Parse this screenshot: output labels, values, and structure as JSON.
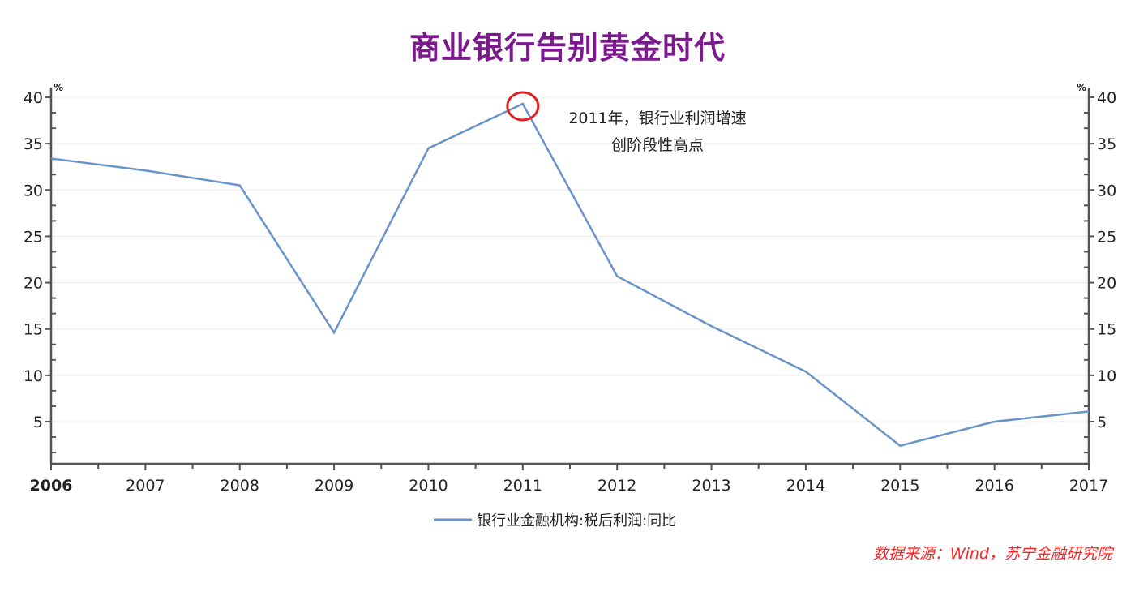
{
  "chart_data": {
    "type": "line",
    "title": "商业银行告别黄金时代",
    "xlabel": "",
    "ylabel": "%",
    "ylabel_right": "%",
    "x": [
      2006,
      2007,
      2008,
      2009,
      2010,
      2011,
      2012,
      2013,
      2014,
      2015,
      2016,
      2017
    ],
    "series": [
      {
        "name": "银行业金融机构:税后利润:同比",
        "color": "#6a93c9",
        "values": [
          33.4,
          32.1,
          30.5,
          14.6,
          34.5,
          39.3,
          20.7,
          15.3,
          10.4,
          2.4,
          5.0,
          6.1
        ]
      }
    ],
    "ylim": [
      0.4,
      40
    ],
    "yticks": [
      5,
      10,
      15,
      20,
      25,
      30,
      35,
      40
    ],
    "xticks": [
      "2006",
      "2007",
      "2008",
      "2009",
      "2010",
      "2011",
      "2012",
      "2013",
      "2014",
      "2015",
      "2016",
      "2017"
    ],
    "grid": true,
    "legend": "bottom",
    "annotation": {
      "lines": [
        "2011年，银行业利润增速",
        "创阶段性高点"
      ],
      "highlight_x": 2011,
      "highlight_color": "#e02020"
    }
  },
  "source": "数据来源：Wind，苏宁金融研究院"
}
